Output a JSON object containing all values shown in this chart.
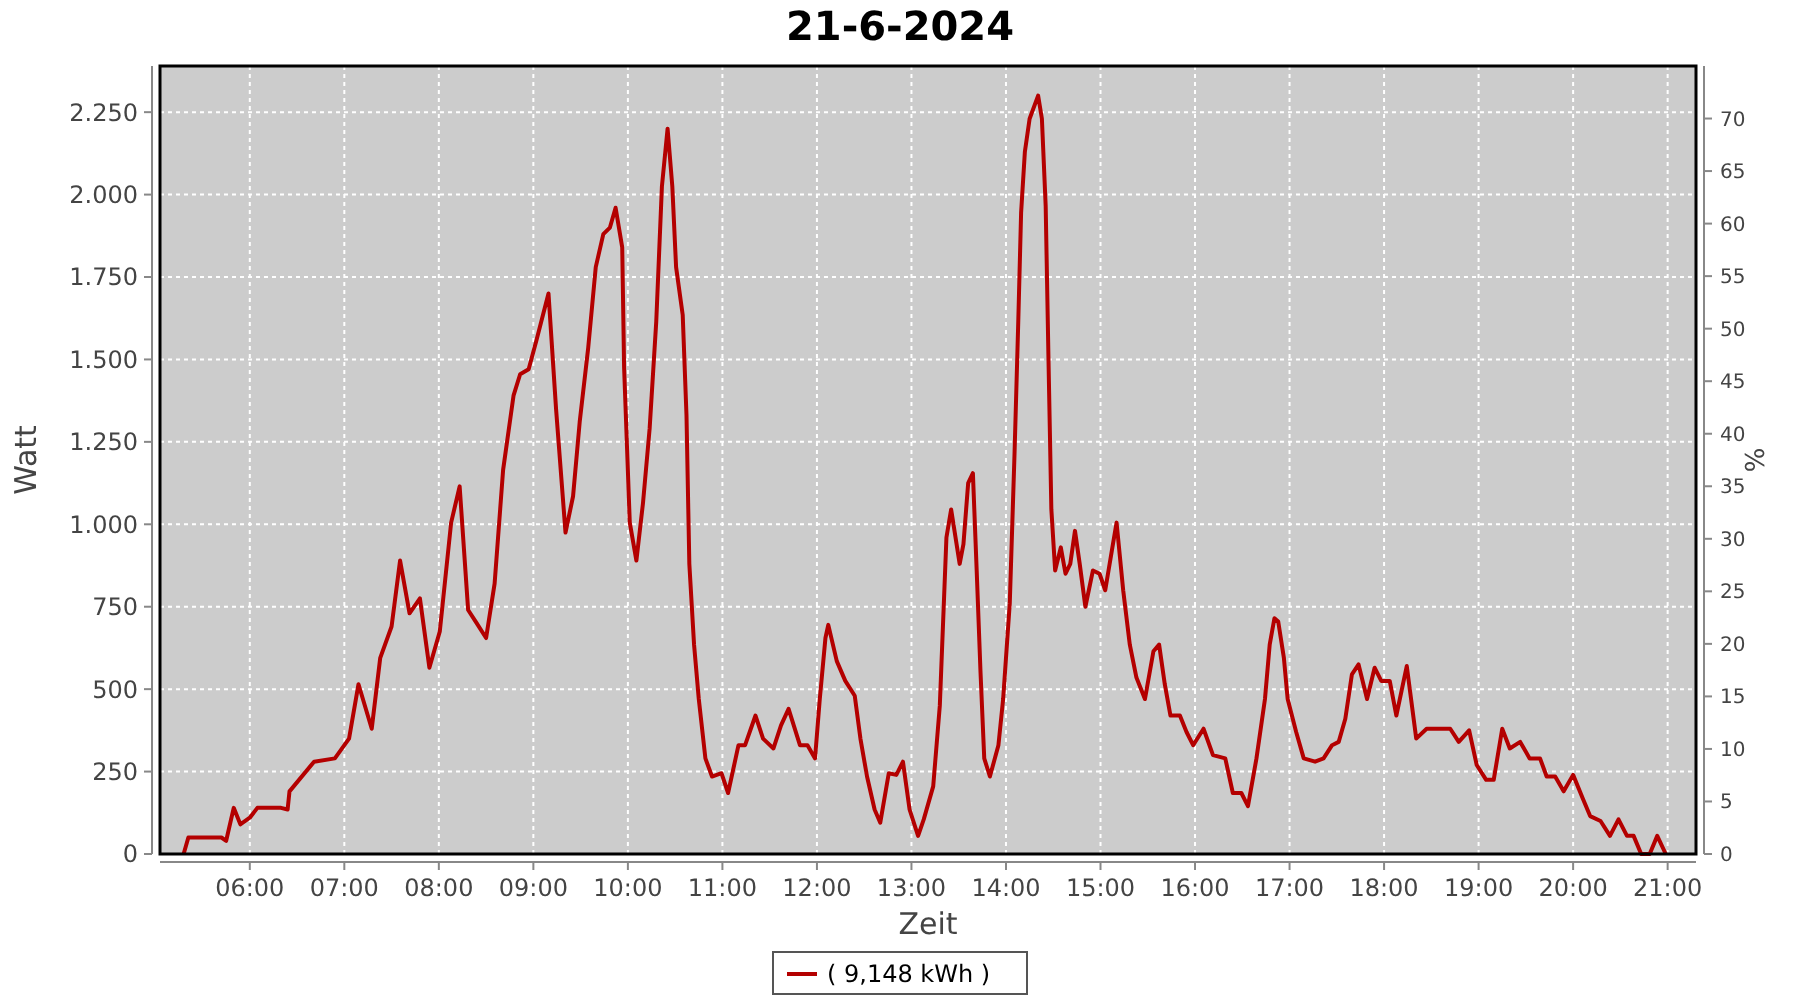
{
  "chart_data": {
    "type": "line",
    "title": "21-6-2024",
    "xlabel": "Zeit",
    "ylabel": "Watt",
    "y2label": "%",
    "x": [
      5.3,
      5.35,
      5.7,
      5.75,
      5.83,
      5.9,
      6.0,
      6.08,
      6.33,
      6.4,
      6.42,
      6.68,
      6.9,
      7.05,
      7.15,
      7.29,
      7.38,
      7.5,
      7.59,
      7.69,
      7.8,
      7.9,
      8.01,
      8.13,
      8.22,
      8.31,
      8.4,
      8.5,
      8.59,
      8.68,
      8.79,
      8.86,
      8.95,
      9.03,
      9.16,
      9.24,
      9.34,
      9.42,
      9.49,
      9.58,
      9.66,
      9.74,
      9.81,
      9.87,
      9.94,
      9.96,
      10.02,
      10.09,
      10.16,
      10.23,
      10.3,
      10.36,
      10.42,
      10.47,
      10.51,
      10.58,
      10.62,
      10.65,
      10.7,
      10.75,
      10.82,
      10.89,
      10.99,
      11.06,
      11.17,
      11.24,
      11.35,
      11.43,
      11.54,
      11.62,
      11.7,
      11.82,
      11.9,
      11.98,
      12.03,
      12.09,
      12.12,
      12.21,
      12.3,
      12.4,
      12.46,
      12.53,
      12.61,
      12.67,
      12.76,
      12.84,
      12.91,
      12.98,
      13.07,
      13.13,
      13.23,
      13.3,
      13.37,
      13.42,
      13.51,
      13.55,
      13.6,
      13.65,
      13.69,
      13.73,
      13.77,
      13.83,
      13.92,
      13.97,
      14.04,
      14.09,
      14.13,
      14.16,
      14.2,
      14.25,
      14.34,
      14.38,
      14.42,
      14.45,
      14.48,
      14.52,
      14.58,
      14.63,
      14.68,
      14.73,
      14.78,
      14.84,
      14.92,
      14.99,
      15.05,
      15.12,
      15.17,
      15.24,
      15.31,
      15.38,
      15.47,
      15.56,
      15.62,
      15.68,
      15.74,
      15.84,
      15.91,
      15.98,
      16.09,
      16.19,
      16.32,
      16.4,
      16.49,
      16.56,
      16.65,
      16.74,
      16.79,
      16.84,
      16.88,
      16.94,
      16.98,
      17.07,
      17.15,
      17.27,
      17.36,
      17.45,
      17.52,
      17.59,
      17.66,
      17.73,
      17.82,
      17.9,
      17.97,
      18.06,
      18.13,
      18.24,
      18.34,
      18.45,
      18.7,
      18.79,
      18.9,
      18.98,
      19.08,
      19.16,
      19.25,
      19.33,
      19.44,
      19.54,
      19.65,
      19.72,
      19.81,
      19.9,
      20.0,
      20.1,
      20.18,
      20.29,
      20.39,
      20.48,
      20.57,
      20.64,
      20.72,
      20.81,
      20.89,
      20.98
    ],
    "series": [
      {
        "name": "( 9,148 kWh )",
        "color": "#b40000",
        "values": [
          0,
          50,
          50,
          40,
          140,
          90,
          110,
          140,
          140,
          135,
          190,
          280,
          290,
          350,
          515,
          380,
          595,
          690,
          890,
          730,
          775,
          565,
          675,
          1005,
          1115,
          740,
          700,
          655,
          820,
          1165,
          1390,
          1455,
          1470,
          1555,
          1700,
          1350,
          975,
          1085,
          1310,
          1535,
          1780,
          1880,
          1900,
          1960,
          1840,
          1475,
          1005,
          890,
          1065,
          1290,
          1615,
          2025,
          2200,
          2025,
          1780,
          1635,
          1330,
          880,
          635,
          470,
          290,
          235,
          245,
          185,
          330,
          330,
          420,
          350,
          320,
          390,
          440,
          330,
          330,
          290,
          470,
          655,
          695,
          585,
          525,
          480,
          350,
          235,
          135,
          95,
          245,
          240,
          280,
          135,
          55,
          105,
          205,
          450,
          960,
          1045,
          880,
          940,
          1125,
          1155,
          860,
          555,
          290,
          235,
          330,
          470,
          760,
          1210,
          1615,
          1945,
          2130,
          2230,
          2300,
          2230,
          1965,
          1495,
          1045,
          860,
          930,
          850,
          880,
          980,
          880,
          750,
          860,
          850,
          800,
          920,
          1005,
          800,
          635,
          535,
          470,
          615,
          635,
          515,
          420,
          420,
          370,
          330,
          380,
          300,
          290,
          185,
          185,
          145,
          290,
          470,
          635,
          715,
          705,
          595,
          470,
          370,
          290,
          280,
          290,
          330,
          340,
          410,
          545,
          575,
          470,
          565,
          525,
          525,
          420,
          570,
          350,
          380,
          380,
          340,
          375,
          270,
          225,
          225,
          380,
          320,
          340,
          290,
          290,
          235,
          235,
          190,
          240,
          170,
          115,
          100,
          55,
          105,
          55,
          55,
          0,
          0,
          55,
          0
        ]
      }
    ],
    "xlim": [
      5.05,
      21.3
    ],
    "xticks": [
      {
        "value": 6,
        "label": "06:00"
      },
      {
        "value": 7,
        "label": "07:00"
      },
      {
        "value": 8,
        "label": "08:00"
      },
      {
        "value": 9,
        "label": "09:00"
      },
      {
        "value": 10,
        "label": "10:00"
      },
      {
        "value": 11,
        "label": "11:00"
      },
      {
        "value": 12,
        "label": "12:00"
      },
      {
        "value": 13,
        "label": "13:00"
      },
      {
        "value": 14,
        "label": "14:00"
      },
      {
        "value": 15,
        "label": "15:00"
      },
      {
        "value": 16,
        "label": "16:00"
      },
      {
        "value": 17,
        "label": "17:00"
      },
      {
        "value": 18,
        "label": "18:00"
      },
      {
        "value": 19,
        "label": "19:00"
      },
      {
        "value": 20,
        "label": "20:00"
      },
      {
        "value": 21,
        "label": "21:00"
      }
    ],
    "ylim": [
      0,
      2390
    ],
    "yticks": [
      0,
      250,
      500,
      750,
      {
        "value": 1000,
        "label": "1.000"
      },
      {
        "value": 1250,
        "label": "1.250"
      },
      {
        "value": 1500,
        "label": "1.500"
      },
      {
        "value": 1750,
        "label": "1.750"
      },
      {
        "value": 2000,
        "label": "2.000"
      },
      {
        "value": 2250,
        "label": "2.250"
      }
    ],
    "y2lim": [
      0,
      75
    ],
    "y2ticks": [
      0,
      5,
      10,
      15,
      20,
      25,
      30,
      35,
      40,
      45,
      50,
      55,
      60,
      65,
      70
    ],
    "grid": true,
    "legend": "bottom",
    "marker": "none",
    "line_style": "solid"
  }
}
